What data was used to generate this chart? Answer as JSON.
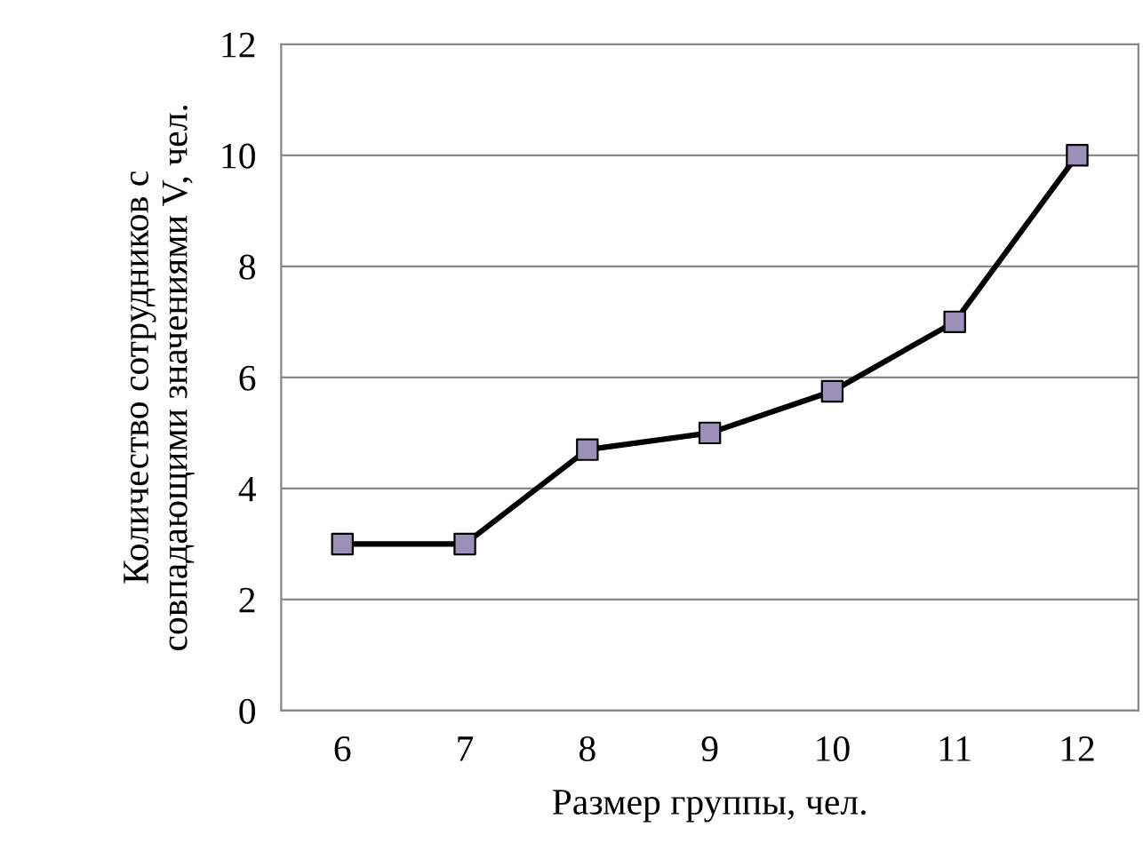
{
  "chart_data": {
    "type": "line",
    "xlabel": "Размер группы, чел.",
    "ylabel": "Количество сотрудников с\nсовпадающими значениями V, чел.",
    "categories": [
      "6",
      "7",
      "8",
      "9",
      "10",
      "11",
      "12"
    ],
    "series": [
      {
        "color": "#000000",
        "colors": [
          "#9b91b8",
          "#9b91b8",
          "#9b91b8",
          "#9b91b8",
          "#9b91b8",
          "#9b91b8",
          "#9b91b8"
        ],
        "values": [
          3,
          3,
          4.7,
          5,
          5.75,
          7,
          10
        ]
      }
    ],
    "ylim": [
      0,
      12
    ],
    "yticks": [
      0,
      2,
      4,
      6,
      8,
      10,
      12
    ],
    "grid": "y",
    "marker": "square",
    "line_style": "solid",
    "legend": false
  }
}
